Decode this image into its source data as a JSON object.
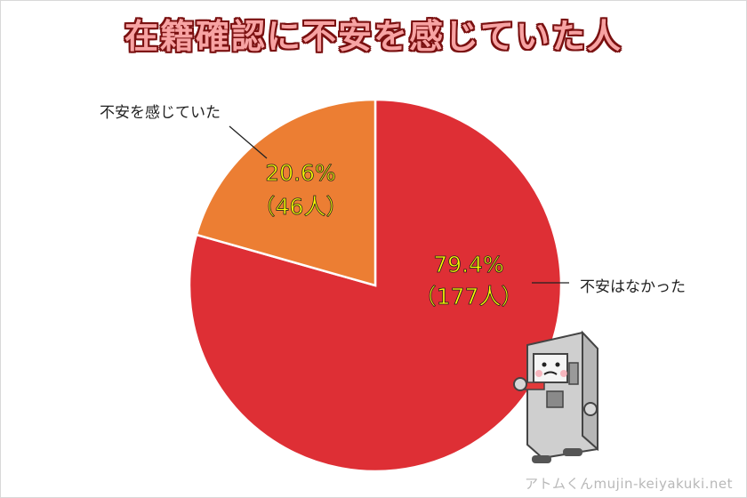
{
  "chart_data": {
    "type": "pie",
    "title": "在籍確認に不安を感じていた人",
    "slices": [
      {
        "label": "不安はなかった",
        "percent": 79.4,
        "count_label": "（177人）",
        "pct_label": "79.4%",
        "color": "#de2f35"
      },
      {
        "label": "不安を感じていた",
        "percent": 20.6,
        "count_label": "（46人）",
        "pct_label": "20.6%",
        "color": "#ec7e33"
      }
    ],
    "label_color": "#ffff00",
    "start_angle": "12 o'clock, clockwise"
  },
  "credit": "アトムくんmujin-keiyakuki.net",
  "mascot_icon": "atm-mascot-icon"
}
